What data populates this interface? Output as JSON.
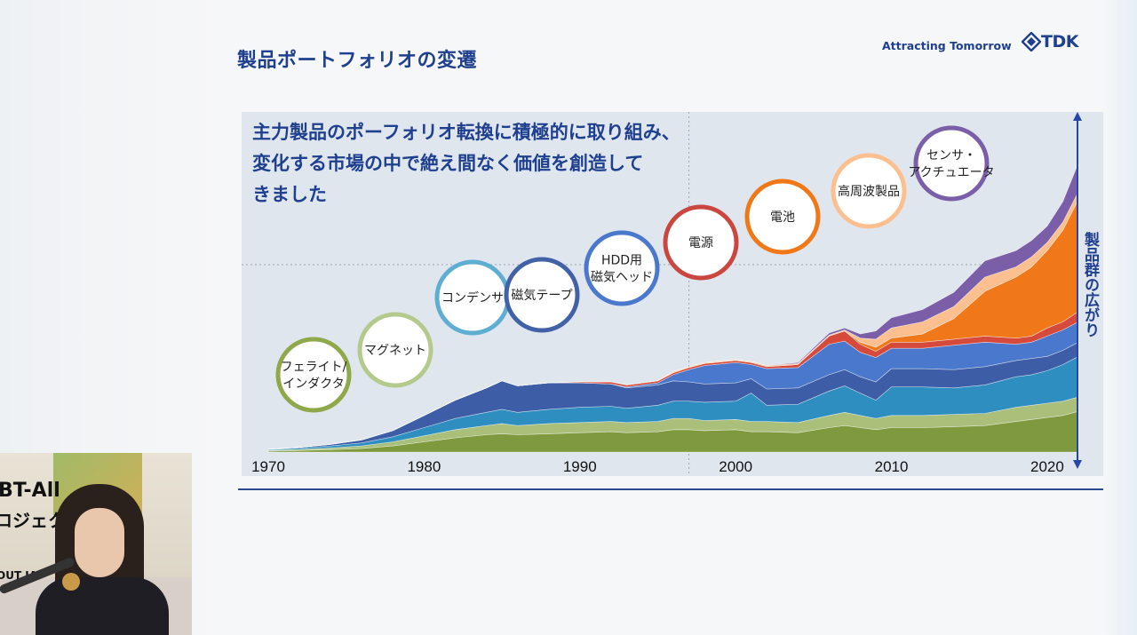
{
  "slide": {
    "title": "製品ポートフォリオの変遷",
    "slogan": "Attracting Tomorrow",
    "logo_text": "TDK",
    "colors": {
      "title": "#1f3f8f",
      "accent": "#1f3f8f"
    }
  },
  "chart_data": {
    "type": "area",
    "subtitle_lines": [
      "主力製品のポーフォリオ転換に積極的に取り組み、",
      "変化する市場の中で絶え間なく価値を創造して",
      "きました"
    ],
    "ylabel": "製品群の広がり",
    "xlim": [
      1970,
      2022
    ],
    "x_ticks": [
      1970,
      1980,
      1990,
      2000,
      2010,
      2020
    ],
    "grid": {
      "horizontal_dotted": true,
      "vertical_dotted_at": 1997
    },
    "stack_order": [
      "ferrite_inductor",
      "magnet",
      "capacitor",
      "magnetic_tape",
      "hdd_head",
      "power_supply",
      "battery",
      "high_frequency",
      "sensor_actuator"
    ],
    "x": [
      1970,
      1972,
      1974,
      1976,
      1978,
      1980,
      1982,
      1984,
      1985,
      1986,
      1988,
      1990,
      1992,
      1993,
      1995,
      1996,
      1997,
      1998,
      2000,
      2001,
      2002,
      2004,
      2006,
      2007,
      2008,
      2009,
      2010,
      2012,
      2014,
      2016,
      2018,
      2019,
      2020,
      2021,
      2022
    ],
    "series": [
      {
        "id": "ferrite_inductor",
        "name": "フェライト/インダクタ",
        "color": "#7f9a3e",
        "values": [
          0.5,
          0.8,
          1.2,
          1.8,
          3,
          5,
          7,
          8.5,
          9,
          8.5,
          9,
          9.5,
          10,
          9.5,
          10,
          11,
          11,
          10.5,
          11,
          10,
          10,
          9.5,
          12,
          13,
          12,
          11,
          12,
          12,
          12.5,
          13,
          15,
          16,
          17,
          18,
          20
        ]
      },
      {
        "id": "magnet",
        "name": "マグネット",
        "color": "#a9bf7a",
        "values": [
          0.3,
          0.5,
          0.8,
          1.2,
          2,
          3,
          4,
          4.5,
          5,
          4.5,
          5,
          5,
          5,
          5,
          5,
          5.5,
          5.5,
          5,
          5,
          5,
          5,
          5,
          6,
          6.5,
          6,
          5.5,
          6,
          6,
          6,
          6,
          7,
          7,
          7,
          7,
          7
        ]
      },
      {
        "id": "capacitor",
        "name": "コンデンサ",
        "color": "#2e8ebf",
        "values": [
          0.4,
          0.6,
          1,
          1.5,
          2.5,
          4,
          5.5,
          6.5,
          7,
          6.5,
          7,
          7.5,
          7.5,
          7,
          8,
          8.5,
          8.5,
          9,
          9,
          14,
          8,
          9,
          12,
          13,
          11,
          9,
          14,
          14,
          13,
          14,
          15,
          15,
          16,
          18,
          20
        ]
      },
      {
        "id": "magnetic_tape",
        "name": "磁気テープ",
        "color": "#3d5ea6",
        "values": [
          0.2,
          0.4,
          0.8,
          1.5,
          3,
          6,
          9,
          12,
          14,
          13,
          13,
          12,
          11,
          10,
          10,
          10,
          9.5,
          9,
          9,
          7,
          8,
          8,
          8,
          8,
          8,
          9,
          9,
          9,
          9,
          9,
          8,
          8,
          7,
          7,
          7
        ]
      },
      {
        "id": "hdd_head",
        "name": "HDD用磁気ヘッド",
        "color": "#4a78cc",
        "values": [
          0,
          0,
          0,
          0,
          0,
          0,
          0,
          0,
          0,
          0,
          0,
          0,
          0,
          0.5,
          1,
          3,
          6,
          9,
          10,
          7,
          10,
          10,
          15,
          14,
          12,
          12,
          10,
          10,
          12,
          12,
          8,
          8,
          10,
          10,
          10
        ]
      },
      {
        "id": "power_supply",
        "name": "電源",
        "color": "#d64a3c",
        "values": [
          0,
          0,
          0,
          0,
          0,
          0,
          0,
          0,
          0,
          0,
          0,
          0.5,
          1,
          1,
          1,
          1,
          1,
          1,
          1,
          1,
          1,
          1.5,
          4,
          5,
          4,
          3,
          3,
          3,
          3,
          3,
          3,
          3,
          4,
          4,
          5
        ]
      },
      {
        "id": "battery",
        "name": "電池",
        "color": "#f07818",
        "values": [
          0,
          0,
          0,
          0,
          0,
          0,
          0,
          0,
          0,
          0,
          0,
          0,
          0,
          0,
          0,
          0,
          0,
          0,
          0,
          0,
          0,
          0,
          0,
          0,
          1,
          2,
          2,
          4,
          10,
          22,
          30,
          34,
          38,
          45,
          55
        ]
      },
      {
        "id": "high_frequency",
        "name": "高周波製品",
        "color": "#fcbf90",
        "values": [
          0,
          0,
          0,
          0,
          0,
          0,
          0,
          0,
          0,
          0,
          0,
          0,
          0,
          0,
          0,
          0.5,
          0.5,
          0.5,
          0.5,
          0.5,
          0.5,
          0.5,
          0.5,
          0.5,
          2,
          4,
          5,
          6,
          6,
          7,
          5,
          5,
          4,
          4,
          4
        ]
      },
      {
        "id": "sensor_actuator",
        "name": "センサ・アクチュエータ",
        "color": "#7b5ea8",
        "values": [
          0,
          0,
          0,
          0,
          0,
          0,
          0,
          0,
          0,
          0,
          0,
          0,
          0,
          0,
          0,
          0,
          0,
          0,
          0,
          0,
          0,
          0.5,
          1,
          1,
          2,
          4,
          5,
          6,
          7,
          8,
          8,
          8,
          8,
          10,
          14
        ]
      }
    ],
    "milestones": [
      {
        "label": "フェライト/\nインダクタ",
        "year": 1973,
        "color": "#8fa84a"
      },
      {
        "label": "マグネット",
        "year": 1978,
        "color": "#b4c98c"
      },
      {
        "label": "コンデンサ",
        "year": 1983,
        "color": "#5eaed1"
      },
      {
        "label": "磁気テープ",
        "year": 1988,
        "color": "#4262a8"
      },
      {
        "label": "HDD用\n磁気ヘッド",
        "year": 1994,
        "color": "#4a78cc"
      },
      {
        "label": "電源",
        "year": 2000,
        "color": "#c9473e"
      },
      {
        "label": "電池",
        "year": 2005,
        "color": "#f07818"
      },
      {
        "label": "高周波製品",
        "year": 2010,
        "color": "#fcbf90"
      },
      {
        "label": "センサ・\nアクチュエータ",
        "year": 2015,
        "color": "#7b5ea8"
      }
    ]
  },
  "webcam": {
    "sign_line1": "BT-All",
    "sign_line2": "ロジェク",
    "sign_line3": "OUT JA"
  }
}
